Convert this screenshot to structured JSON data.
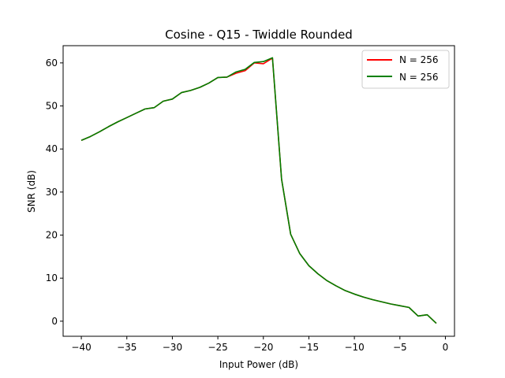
{
  "chart_data": {
    "type": "line",
    "title": "Cosine - Q15 - Twiddle Rounded",
    "xlabel": "Input Power (dB)",
    "ylabel": "SNR (dB)",
    "xlim": [
      -42,
      1
    ],
    "ylim": [
      -3.5,
      64
    ],
    "xticks": [
      -40,
      -35,
      -30,
      -25,
      -20,
      -15,
      -10,
      -5,
      0
    ],
    "xtick_labels": [
      "−40",
      "−35",
      "−30",
      "−25",
      "−20",
      "−15",
      "−10",
      "−5",
      "0"
    ],
    "yticks": [
      0,
      10,
      20,
      30,
      40,
      50,
      60
    ],
    "ytick_labels": [
      "0",
      "10",
      "20",
      "30",
      "40",
      "50",
      "60"
    ],
    "grid": false,
    "legend_position": "upper right",
    "x": [
      -40,
      -39,
      -38,
      -37,
      -36,
      -35,
      -34,
      -33,
      -32,
      -31,
      -30,
      -29,
      -28,
      -27,
      -26,
      -25,
      -24,
      -23,
      -22,
      -21,
      -20,
      -19,
      -18,
      -17,
      -16,
      -15,
      -14,
      -13,
      -12,
      -11,
      -10,
      -9,
      -8,
      -7,
      -6,
      -5,
      -4,
      -3,
      -2,
      -1
    ],
    "series": [
      {
        "name": "N = 256",
        "color": "#ff0000",
        "values": [
          42.0,
          42.9,
          44.0,
          45.2,
          46.3,
          47.3,
          48.3,
          49.3,
          49.6,
          51.1,
          51.6,
          53.1,
          53.6,
          54.3,
          55.3,
          56.6,
          56.7,
          57.6,
          58.2,
          60.0,
          59.8,
          61.1,
          33.0,
          20.2,
          15.7,
          12.9,
          11.0,
          9.4,
          8.2,
          7.1,
          6.3,
          5.6,
          5.0,
          4.5,
          4.0,
          3.6,
          3.2,
          1.2,
          1.5,
          -0.5
        ]
      },
      {
        "name": "N = 256",
        "color": "#008000",
        "values": [
          42.0,
          42.9,
          44.0,
          45.2,
          46.3,
          47.3,
          48.3,
          49.3,
          49.6,
          51.1,
          51.6,
          53.1,
          53.6,
          54.3,
          55.3,
          56.6,
          56.7,
          57.9,
          58.5,
          60.1,
          60.3,
          61.2,
          33.0,
          20.2,
          15.7,
          12.9,
          11.0,
          9.4,
          8.2,
          7.1,
          6.3,
          5.6,
          5.0,
          4.5,
          4.0,
          3.6,
          3.2,
          1.2,
          1.5,
          -0.5
        ]
      }
    ]
  }
}
